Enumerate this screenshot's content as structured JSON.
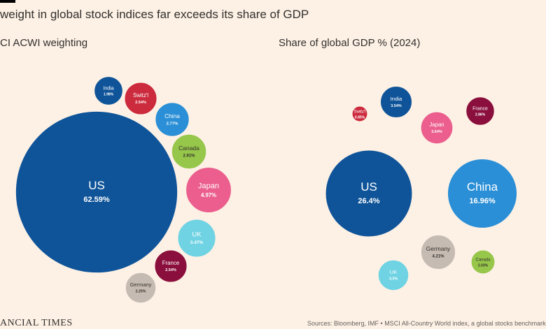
{
  "header": {
    "title": "weight in global stock indices far exceeds its share of GDP"
  },
  "footer": {
    "brand": "ANCIAL TIMES",
    "source": "Sources: Bloomberg, IMF • MSCI All-Country World index, a global stocks benchmark"
  },
  "chart_data": [
    {
      "type": "bubble",
      "title": "CI ACWI weighting",
      "unit": "%",
      "series": [
        {
          "name": "US",
          "value": 62.59,
          "label": "62.59%",
          "color": "#0f5499"
        },
        {
          "name": "India",
          "value": 1.98,
          "label": "1.98%",
          "color": "#0f5499"
        },
        {
          "name": "Switz'l",
          "value": 2.54,
          "label": "2.54%",
          "color": "#cc2a3d"
        },
        {
          "name": "China",
          "value": 2.77,
          "label": "2.77%",
          "color": "#2a8fd6"
        },
        {
          "name": "Canada",
          "value": 2.91,
          "label": "2.91%",
          "color": "#96c64a"
        },
        {
          "name": "Japan",
          "value": 4.97,
          "label": "4.97%",
          "color": "#eb5e8d"
        },
        {
          "name": "UK",
          "value": 3.47,
          "label": "3.47%",
          "color": "#6fd3e3"
        },
        {
          "name": "France",
          "value": 2.54,
          "label": "2.54%",
          "color": "#8a0f3c"
        },
        {
          "name": "Germany",
          "value": 2.25,
          "label": "2.25%",
          "color": "#c6bbb2"
        }
      ]
    },
    {
      "type": "bubble",
      "title": "Share of global GDP % (2024)",
      "unit": "%",
      "series": [
        {
          "name": "Switz'l",
          "value": 0.85,
          "label": "0.85%",
          "color": "#cc2a3d"
        },
        {
          "name": "India",
          "value": 3.54,
          "label": "3.54%",
          "color": "#0f5499"
        },
        {
          "name": "France",
          "value": 2.86,
          "label": "2.86%",
          "color": "#8a0f3c"
        },
        {
          "name": "Japan",
          "value": 3.64,
          "label": "3.64%",
          "color": "#eb5e8d"
        },
        {
          "name": "US",
          "value": 26.4,
          "label": "26.4%",
          "color": "#0f5499"
        },
        {
          "name": "China",
          "value": 16.96,
          "label": "16.96%",
          "color": "#2a8fd6"
        },
        {
          "name": "Germany",
          "value": 4.21,
          "label": "4.21%",
          "color": "#c6bbb2"
        },
        {
          "name": "Canada",
          "value": 2.03,
          "label": "2.03%",
          "color": "#96c64a"
        },
        {
          "name": "UK",
          "value": 3.3,
          "label": "3.3%",
          "color": "#6fd3e3"
        }
      ]
    }
  ]
}
